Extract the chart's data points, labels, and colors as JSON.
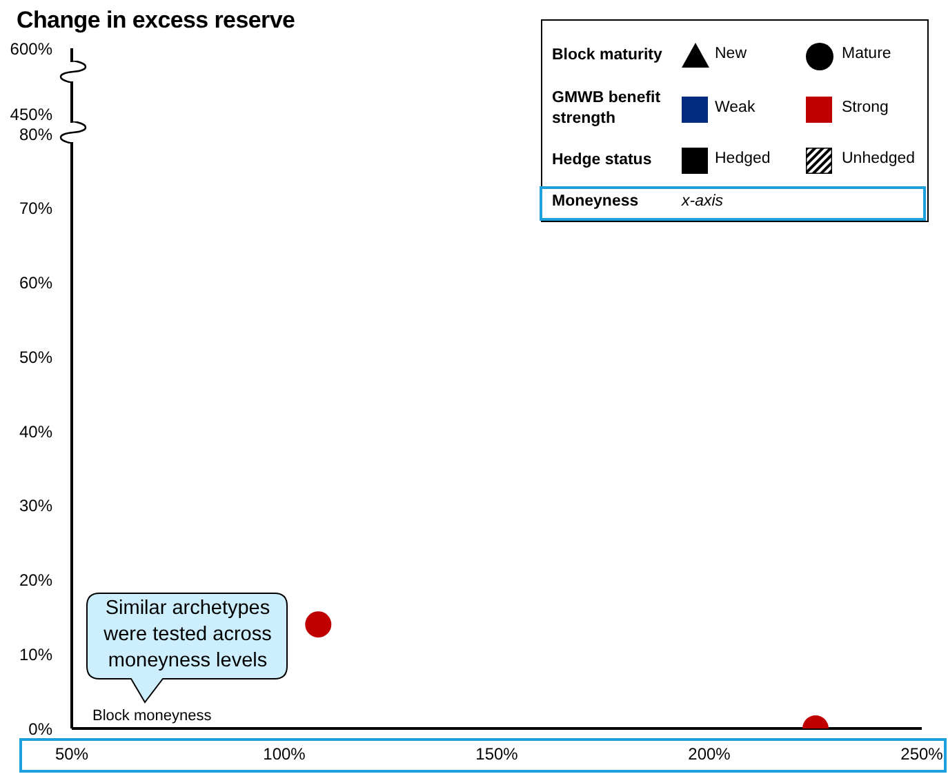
{
  "chart_data": [
    {
      "type": "scatter",
      "title": "Change in excess reserve",
      "xlim": [
        50,
        250
      ],
      "ylim": [
        420,
        600
      ],
      "yticks": [
        {
          "value": 450,
          "label": "450%"
        },
        {
          "value": 600,
          "label": "600%"
        }
      ],
      "tick_labels": "y"
    },
    {
      "type": "scatter",
      "xlabel": "Block moneyness",
      "marker": "circle",
      "series": [
        {
          "color": "#c00000",
          "x": [
            108,
            225
          ],
          "values": [
            14,
            0
          ]
        }
      ],
      "xlim": [
        50,
        250
      ],
      "xticks": [
        {
          "value": 50,
          "label": "50%"
        },
        {
          "value": 100,
          "label": "100%"
        },
        {
          "value": 150,
          "label": "150%"
        },
        {
          "value": 200,
          "label": "200%"
        },
        {
          "value": 250,
          "label": "250%"
        }
      ],
      "ylim": [
        0,
        80
      ],
      "yticks": [
        {
          "value": 0,
          "label": "0%"
        },
        {
          "value": 10,
          "label": "10%"
        },
        {
          "value": 20,
          "label": "20%"
        },
        {
          "value": 30,
          "label": "30%"
        },
        {
          "value": 40,
          "label": "40%"
        },
        {
          "value": 50,
          "label": "50%"
        },
        {
          "value": 60,
          "label": "60%"
        },
        {
          "value": 70,
          "label": "70%"
        },
        {
          "value": 80,
          "label": "80%"
        }
      ],
      "annotations": [
        "Block maturity",
        "New",
        "Mature",
        "GMWB benefit strength",
        "Weak",
        "Strong",
        "Hedge status",
        "Hedged",
        "Unhedged",
        "Moneyness",
        "x-axis",
        "Similar archetypes were tested across moneyness levels"
      ]
    }
  ]
}
